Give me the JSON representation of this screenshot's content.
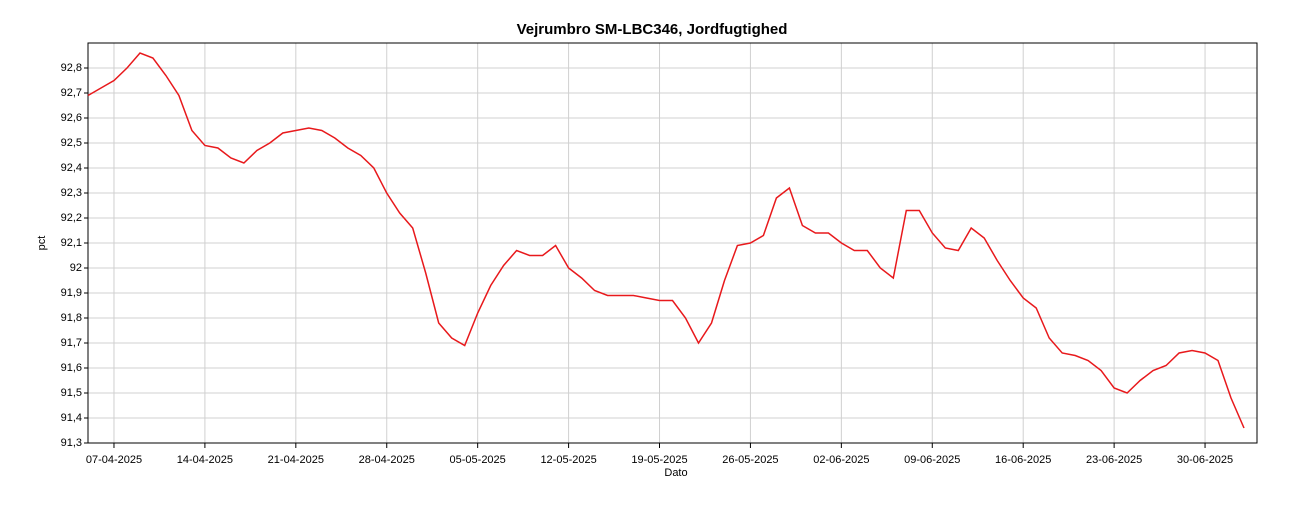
{
  "chart_data": {
    "type": "line",
    "title": "Vejrumbro SM-LBC346, Jordfugtighed",
    "xlabel": "Dato",
    "ylabel": "pct",
    "xlim": [
      "2025-04-05",
      "2025-07-04"
    ],
    "ylim": [
      91.3,
      92.9
    ],
    "yticks": [
      {
        "value": 91.3,
        "label": "91,3"
      },
      {
        "value": 91.4,
        "label": "91,4"
      },
      {
        "value": 91.5,
        "label": "91,5"
      },
      {
        "value": 91.6,
        "label": "91,6"
      },
      {
        "value": 91.7,
        "label": "91,7"
      },
      {
        "value": 91.8,
        "label": "91,8"
      },
      {
        "value": 91.9,
        "label": "91,9"
      },
      92,
      {
        "value": 92.1,
        "label": "92,1"
      },
      {
        "value": 92.2,
        "label": "92,2"
      },
      {
        "value": 92.3,
        "label": "92,3"
      },
      {
        "value": 92.4,
        "label": "92,4"
      },
      {
        "value": 92.5,
        "label": "92,5"
      },
      {
        "value": 92.6,
        "label": "92,6"
      },
      {
        "value": 92.7,
        "label": "92,7"
      },
      {
        "value": 92.8,
        "label": "92,8"
      }
    ],
    "xticks": [
      {
        "value": "2025-04-07",
        "label": "07-04-2025"
      },
      {
        "value": "2025-04-14",
        "label": "14-04-2025"
      },
      {
        "value": "2025-04-21",
        "label": "21-04-2025"
      },
      {
        "value": "2025-04-28",
        "label": "28-04-2025"
      },
      {
        "value": "2025-05-05",
        "label": "05-05-2025"
      },
      {
        "value": "2025-05-12",
        "label": "12-05-2025"
      },
      {
        "value": "2025-05-19",
        "label": "19-05-2025"
      },
      {
        "value": "2025-05-26",
        "label": "26-05-2025"
      },
      {
        "value": "2025-06-02",
        "label": "02-06-2025"
      },
      {
        "value": "2025-06-09",
        "label": "09-06-2025"
      },
      {
        "value": "2025-06-16",
        "label": "16-06-2025"
      },
      {
        "value": "2025-06-23",
        "label": "23-06-2025"
      },
      {
        "value": "2025-06-30",
        "label": "30-06-2025"
      }
    ],
    "grid": true,
    "x": [
      "2025-04-05",
      "2025-04-06",
      "2025-04-07",
      "2025-04-08",
      "2025-04-09",
      "2025-04-10",
      "2025-04-11",
      "2025-04-12",
      "2025-04-13",
      "2025-04-14",
      "2025-04-15",
      "2025-04-16",
      "2025-04-17",
      "2025-04-18",
      "2025-04-19",
      "2025-04-20",
      "2025-04-21",
      "2025-04-22",
      "2025-04-23",
      "2025-04-24",
      "2025-04-25",
      "2025-04-26",
      "2025-04-27",
      "2025-04-28",
      "2025-04-29",
      "2025-04-30",
      "2025-05-01",
      "2025-05-02",
      "2025-05-03",
      "2025-05-04",
      "2025-05-05",
      "2025-05-06",
      "2025-05-07",
      "2025-05-08",
      "2025-05-09",
      "2025-05-10",
      "2025-05-11",
      "2025-05-12",
      "2025-05-13",
      "2025-05-14",
      "2025-05-15",
      "2025-05-16",
      "2025-05-17",
      "2025-05-18",
      "2025-05-19",
      "2025-05-20",
      "2025-05-21",
      "2025-05-22",
      "2025-05-23",
      "2025-05-24",
      "2025-05-25",
      "2025-05-26",
      "2025-05-27",
      "2025-05-28",
      "2025-05-29",
      "2025-05-30",
      "2025-05-31",
      "2025-06-01",
      "2025-06-02",
      "2025-06-03",
      "2025-06-04",
      "2025-06-05",
      "2025-06-06",
      "2025-06-07",
      "2025-06-08",
      "2025-06-09",
      "2025-06-10",
      "2025-06-11",
      "2025-06-12",
      "2025-06-13",
      "2025-06-14",
      "2025-06-15",
      "2025-06-16",
      "2025-06-17",
      "2025-06-18",
      "2025-06-19",
      "2025-06-20",
      "2025-06-21",
      "2025-06-22",
      "2025-06-23",
      "2025-06-24",
      "2025-06-25",
      "2025-06-26",
      "2025-06-27",
      "2025-06-28",
      "2025-06-29",
      "2025-06-30",
      "2025-07-01",
      "2025-07-02",
      "2025-07-03"
    ],
    "series": [
      {
        "name": "pct",
        "color": "#e8191c",
        "values": [
          92.69,
          92.72,
          92.75,
          92.8,
          92.86,
          92.84,
          92.77,
          92.69,
          92.55,
          92.49,
          92.48,
          92.44,
          92.42,
          92.47,
          92.5,
          92.54,
          92.55,
          92.56,
          92.55,
          92.52,
          92.48,
          92.45,
          92.4,
          92.3,
          92.22,
          92.16,
          91.98,
          91.78,
          91.72,
          91.69,
          91.82,
          91.93,
          92.01,
          92.07,
          92.05,
          92.05,
          92.09,
          92.0,
          91.96,
          91.91,
          91.89,
          91.89,
          91.89,
          91.88,
          91.87,
          91.87,
          91.8,
          91.7,
          91.78,
          91.95,
          92.09,
          92.1,
          92.13,
          92.28,
          92.32,
          92.17,
          92.14,
          92.14,
          92.1,
          92.07,
          92.07,
          92.0,
          91.96,
          92.23,
          92.23,
          92.14,
          92.08,
          92.07,
          92.16,
          92.12,
          92.03,
          91.95,
          91.88,
          91.84,
          91.72,
          91.66,
          91.65,
          91.63,
          91.59,
          91.52,
          91.5,
          91.55,
          91.59,
          91.61,
          91.66,
          91.67,
          91.66,
          91.63,
          91.48,
          91.36
        ]
      }
    ]
  }
}
